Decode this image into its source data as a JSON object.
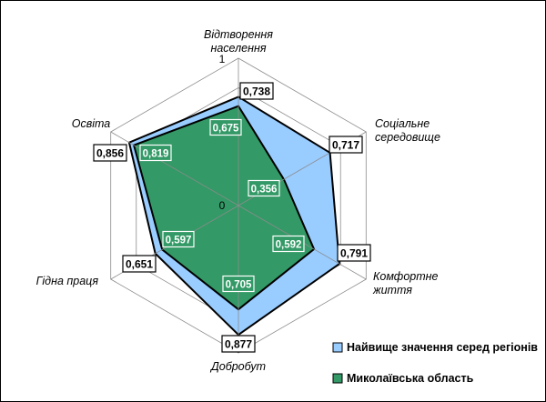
{
  "chart_data": {
    "type": "radar",
    "categories": [
      {
        "lines": [
          "Відтворення",
          "населення"
        ]
      },
      {
        "lines": [
          "Соціальне",
          "середовище"
        ]
      },
      {
        "lines": [
          "Комфортне",
          "життя"
        ]
      },
      {
        "lines": [
          "Добробут"
        ]
      },
      {
        "lines": [
          "Гідна праця"
        ]
      },
      {
        "lines": [
          "Освіта"
        ]
      }
    ],
    "tick_labels": [
      "0",
      "1"
    ],
    "rlim": [
      0,
      1
    ],
    "grid": true,
    "legend_position": "bottom-right",
    "series": [
      {
        "name": "Найвище значення серед регіонів",
        "color": "#99ccff",
        "values": [
          0.738,
          0.717,
          0.791,
          0.877,
          0.651,
          0.856
        ],
        "labels": [
          "0,738",
          "0,717",
          "0,791",
          "0,877",
          "0,651",
          "0,856"
        ]
      },
      {
        "name": "Миколаївська область",
        "color": "#339966",
        "values": [
          0.675,
          0.356,
          0.592,
          0.705,
          0.597,
          0.819
        ],
        "labels": [
          "0,675",
          "0,356",
          "0,592",
          "0,705",
          "0,597",
          "0,819"
        ]
      }
    ]
  }
}
